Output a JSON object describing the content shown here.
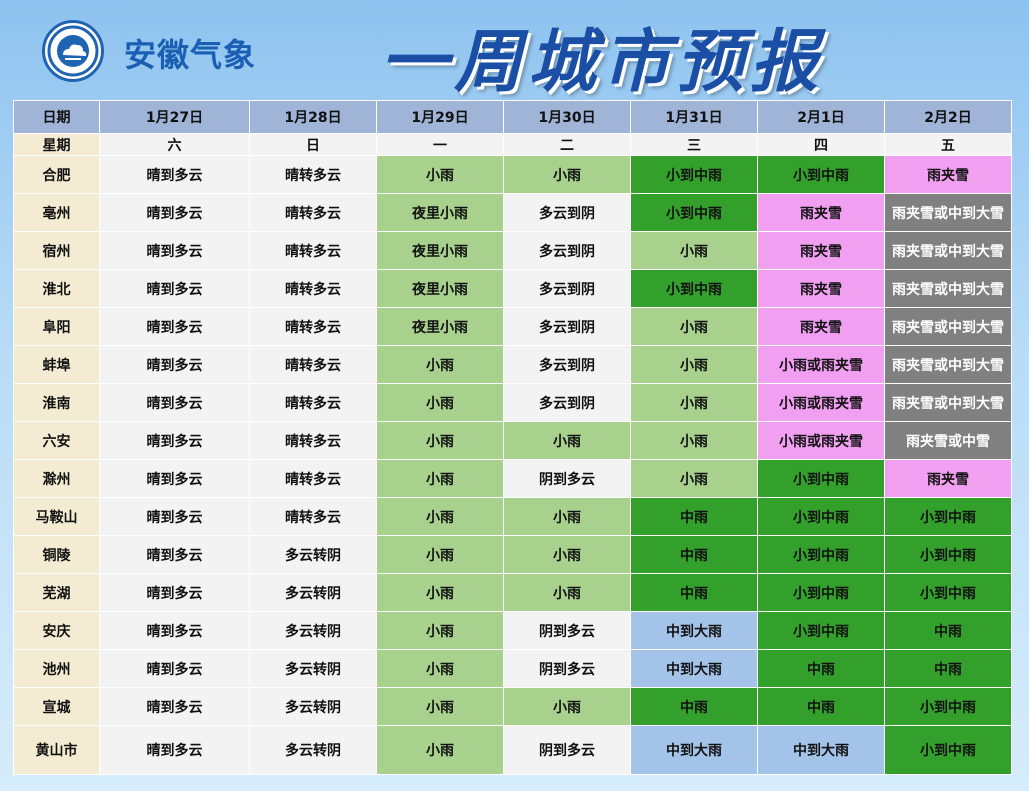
{
  "brand": "安徽气象",
  "title": "一周城市预报",
  "logo_text": "ANHUI METEOROLOGICAL BUREAU",
  "colors": {
    "plain": "#f3f3f3",
    "light_green": "#a9d18e",
    "dark_green": "#33a02c",
    "pink": "#f19ff1",
    "gray": "#808080",
    "light_blue": "#a3c4e8",
    "header": "#9fb4d6",
    "city": "#f3ecd2"
  },
  "table": {
    "date_label": "日期",
    "weekday_label": "星期",
    "dates": [
      "1月27日",
      "1月28日",
      "1月29日",
      "1月30日",
      "1月31日",
      "2月1日",
      "2月2日"
    ],
    "weekdays": [
      "六",
      "日",
      "一",
      "二",
      "三",
      "四",
      "五"
    ],
    "rows": [
      {
        "city": "合肥",
        "cells": [
          [
            "晴到多云",
            "plain"
          ],
          [
            "晴转多云",
            "plain"
          ],
          [
            "小雨",
            "lg"
          ],
          [
            "小雨",
            "lg"
          ],
          [
            "小到中雨",
            "dg"
          ],
          [
            "小到中雨",
            "dg"
          ],
          [
            "雨夹雪",
            "pk"
          ]
        ]
      },
      {
        "city": "亳州",
        "cells": [
          [
            "晴到多云",
            "plain"
          ],
          [
            "晴转多云",
            "plain"
          ],
          [
            "夜里小雨",
            "lg"
          ],
          [
            "多云到阴",
            "plain"
          ],
          [
            "小到中雨",
            "dg"
          ],
          [
            "雨夹雪",
            "pk"
          ],
          [
            "雨夹雪或中到大雪",
            "gy"
          ]
        ]
      },
      {
        "city": "宿州",
        "cells": [
          [
            "晴到多云",
            "plain"
          ],
          [
            "晴转多云",
            "plain"
          ],
          [
            "夜里小雨",
            "lg"
          ],
          [
            "多云到阴",
            "plain"
          ],
          [
            "小雨",
            "lg"
          ],
          [
            "雨夹雪",
            "pk"
          ],
          [
            "雨夹雪或中到大雪",
            "gy"
          ]
        ]
      },
      {
        "city": "淮北",
        "cells": [
          [
            "晴到多云",
            "plain"
          ],
          [
            "晴转多云",
            "plain"
          ],
          [
            "夜里小雨",
            "lg"
          ],
          [
            "多云到阴",
            "plain"
          ],
          [
            "小到中雨",
            "dg"
          ],
          [
            "雨夹雪",
            "pk"
          ],
          [
            "雨夹雪或中到大雪",
            "gy"
          ]
        ]
      },
      {
        "city": "阜阳",
        "cells": [
          [
            "晴到多云",
            "plain"
          ],
          [
            "晴转多云",
            "plain"
          ],
          [
            "夜里小雨",
            "lg"
          ],
          [
            "多云到阴",
            "plain"
          ],
          [
            "小雨",
            "lg"
          ],
          [
            "雨夹雪",
            "pk"
          ],
          [
            "雨夹雪或中到大雪",
            "gy"
          ]
        ]
      },
      {
        "city": "蚌埠",
        "cells": [
          [
            "晴到多云",
            "plain"
          ],
          [
            "晴转多云",
            "plain"
          ],
          [
            "小雨",
            "lg"
          ],
          [
            "多云到阴",
            "plain"
          ],
          [
            "小雨",
            "lg"
          ],
          [
            "小雨或雨夹雪",
            "pk"
          ],
          [
            "雨夹雪或中到大雪",
            "gy"
          ]
        ]
      },
      {
        "city": "淮南",
        "cells": [
          [
            "晴到多云",
            "plain"
          ],
          [
            "晴转多云",
            "plain"
          ],
          [
            "小雨",
            "lg"
          ],
          [
            "多云到阴",
            "plain"
          ],
          [
            "小雨",
            "lg"
          ],
          [
            "小雨或雨夹雪",
            "pk"
          ],
          [
            "雨夹雪或中到大雪",
            "gy"
          ]
        ]
      },
      {
        "city": "六安",
        "cells": [
          [
            "晴到多云",
            "plain"
          ],
          [
            "晴转多云",
            "plain"
          ],
          [
            "小雨",
            "lg"
          ],
          [
            "小雨",
            "lg"
          ],
          [
            "小雨",
            "lg"
          ],
          [
            "小雨或雨夹雪",
            "pk"
          ],
          [
            "雨夹雪或中雪",
            "gy"
          ]
        ]
      },
      {
        "city": "滁州",
        "cells": [
          [
            "晴到多云",
            "plain"
          ],
          [
            "晴转多云",
            "plain"
          ],
          [
            "小雨",
            "lg"
          ],
          [
            "阴到多云",
            "plain"
          ],
          [
            "小雨",
            "lg"
          ],
          [
            "小到中雨",
            "dg"
          ],
          [
            "雨夹雪",
            "pk"
          ]
        ]
      },
      {
        "city": "马鞍山",
        "cells": [
          [
            "晴到多云",
            "plain"
          ],
          [
            "晴转多云",
            "plain"
          ],
          [
            "小雨",
            "lg"
          ],
          [
            "小雨",
            "lg"
          ],
          [
            "中雨",
            "dg"
          ],
          [
            "小到中雨",
            "dg"
          ],
          [
            "小到中雨",
            "dg"
          ]
        ]
      },
      {
        "city": "铜陵",
        "cells": [
          [
            "晴到多云",
            "plain"
          ],
          [
            "多云转阴",
            "plain"
          ],
          [
            "小雨",
            "lg"
          ],
          [
            "小雨",
            "lg"
          ],
          [
            "中雨",
            "dg"
          ],
          [
            "小到中雨",
            "dg"
          ],
          [
            "小到中雨",
            "dg"
          ]
        ]
      },
      {
        "city": "芜湖",
        "cells": [
          [
            "晴到多云",
            "plain"
          ],
          [
            "多云转阴",
            "plain"
          ],
          [
            "小雨",
            "lg"
          ],
          [
            "小雨",
            "lg"
          ],
          [
            "中雨",
            "dg"
          ],
          [
            "小到中雨",
            "dg"
          ],
          [
            "小到中雨",
            "dg"
          ]
        ]
      },
      {
        "city": "安庆",
        "cells": [
          [
            "晴到多云",
            "plain"
          ],
          [
            "多云转阴",
            "plain"
          ],
          [
            "小雨",
            "lg"
          ],
          [
            "阴到多云",
            "plain"
          ],
          [
            "中到大雨",
            "bl"
          ],
          [
            "小到中雨",
            "dg"
          ],
          [
            "中雨",
            "dg"
          ]
        ]
      },
      {
        "city": "池州",
        "cells": [
          [
            "晴到多云",
            "plain"
          ],
          [
            "多云转阴",
            "plain"
          ],
          [
            "小雨",
            "lg"
          ],
          [
            "阴到多云",
            "plain"
          ],
          [
            "中到大雨",
            "bl"
          ],
          [
            "中雨",
            "dg"
          ],
          [
            "中雨",
            "dg"
          ]
        ]
      },
      {
        "city": "宣城",
        "cells": [
          [
            "晴到多云",
            "plain"
          ],
          [
            "多云转阴",
            "plain"
          ],
          [
            "小雨",
            "lg"
          ],
          [
            "小雨",
            "lg"
          ],
          [
            "中雨",
            "dg"
          ],
          [
            "中雨",
            "dg"
          ],
          [
            "小到中雨",
            "dg"
          ]
        ]
      },
      {
        "city": "黄山市",
        "cells": [
          [
            "晴到多云",
            "plain"
          ],
          [
            "多云转阴",
            "plain"
          ],
          [
            "小雨",
            "lg"
          ],
          [
            "阴到多云",
            "plain"
          ],
          [
            "中到大雨",
            "bl"
          ],
          [
            "中到大雨",
            "bl"
          ],
          [
            "小到中雨",
            "dg"
          ]
        ]
      }
    ]
  }
}
